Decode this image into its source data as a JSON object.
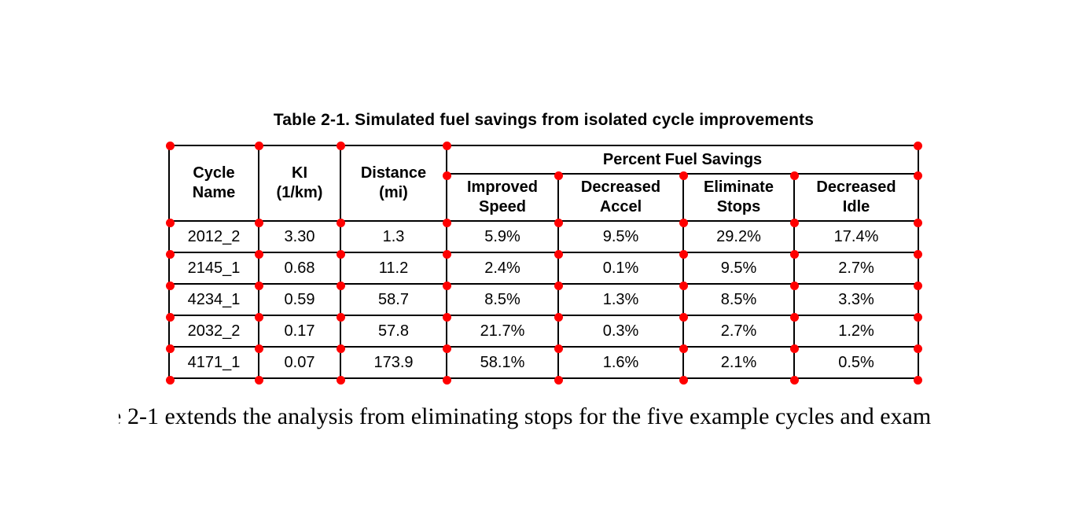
{
  "title": "Table 2-1. Simulated fuel savings from isolated cycle improvements",
  "table": {
    "headers": {
      "cycle_name": "Cycle\nName",
      "ki": "KI\n(1/km)",
      "distance": "Distance\n(mi)",
      "percent_fuel_savings": "Percent Fuel Savings",
      "improved_speed": "Improved\nSpeed",
      "decreased_accel": "Decreased\nAccel",
      "eliminate_stops": "Eliminate\nStops",
      "decreased_idle": "Decreased\nIdle"
    },
    "rows": [
      [
        "2012_2",
        "3.30",
        "1.3",
        "5.9%",
        "9.5%",
        "29.2%",
        "17.4%"
      ],
      [
        "2145_1",
        "0.68",
        "11.2",
        "2.4%",
        "0.1%",
        "9.5%",
        "2.7%"
      ],
      [
        "4234_1",
        "0.59",
        "58.7",
        "8.5%",
        "1.3%",
        "8.5%",
        "3.3%"
      ],
      [
        "2032_2",
        "0.17",
        "57.8",
        "21.7%",
        "0.3%",
        "2.7%",
        "1.2%"
      ],
      [
        "4171_1",
        "0.07",
        "173.9",
        "58.1%",
        "1.6%",
        "2.1%",
        "0.5%"
      ]
    ]
  },
  "annotations": {
    "marker_color": "#ff0000",
    "marker_shape": "circle",
    "marker_count": 58
  },
  "caption": {
    "partial_glyph": "e",
    "text": "2-1 extends the analysis from eliminating stops for the five example cycles and exam"
  },
  "colors": {
    "background": "#ffffff",
    "text": "#000000",
    "table_border": "#000000"
  }
}
